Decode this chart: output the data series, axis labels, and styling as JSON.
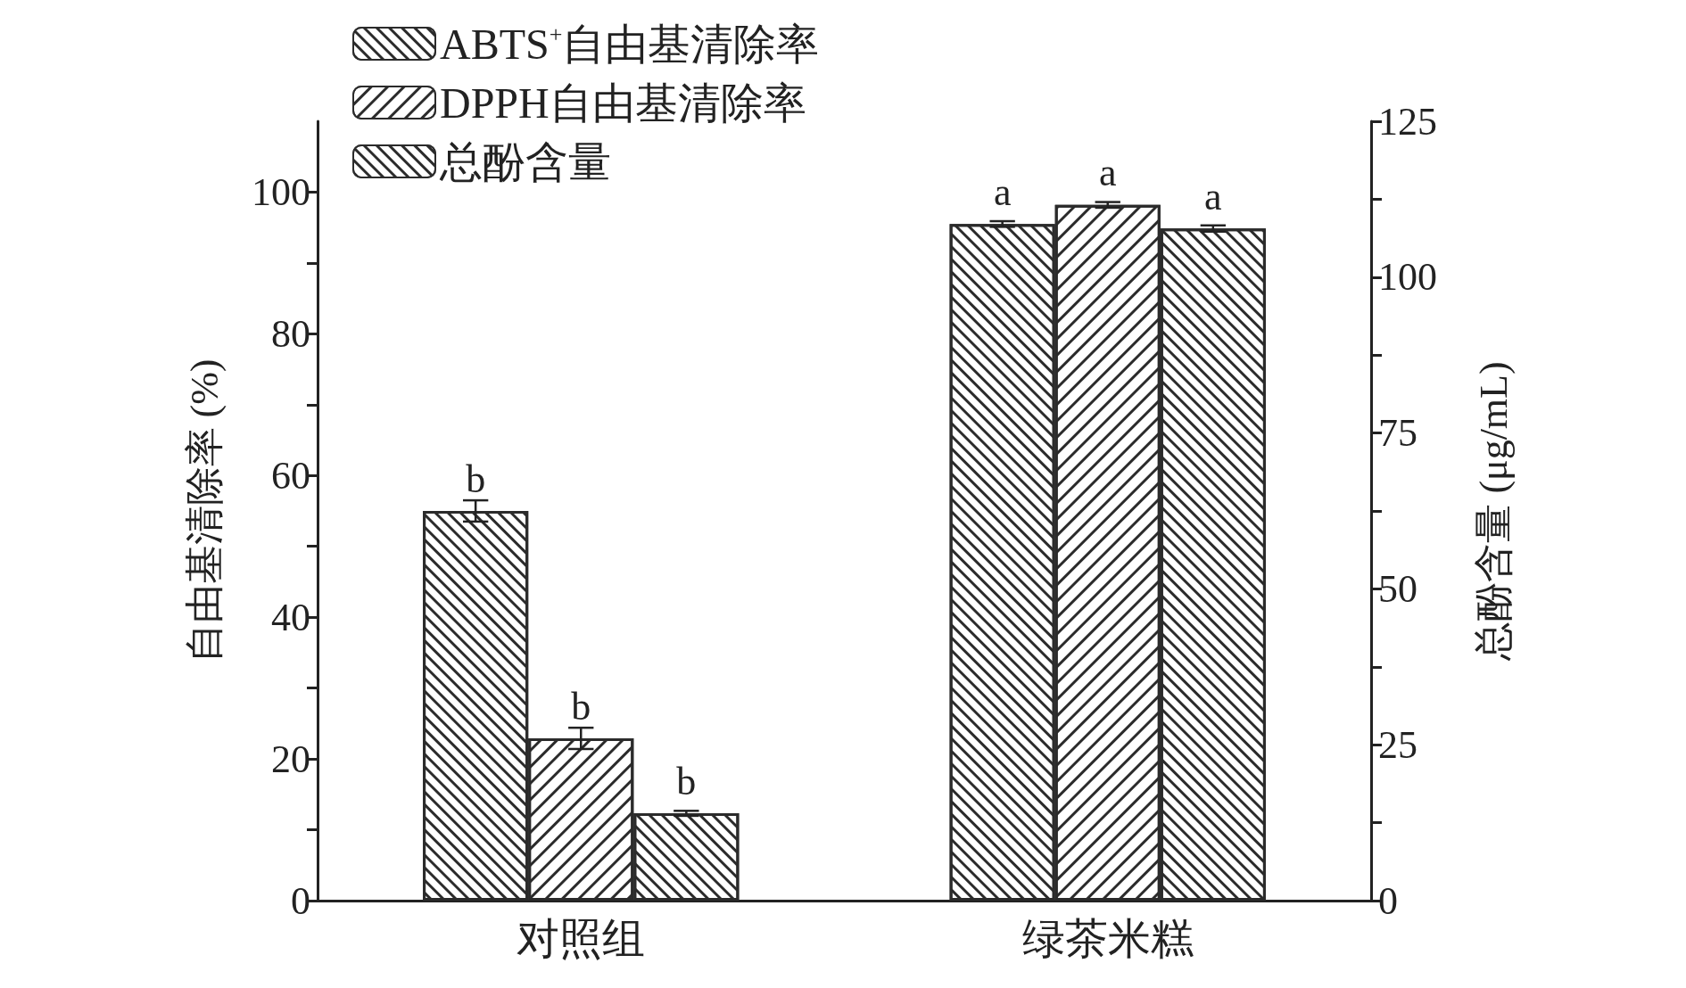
{
  "chart_data": {
    "type": "bar",
    "categories": [
      "对照组",
      "绿茶米糕"
    ],
    "ylabel": "自由基清除率 (%)",
    "y2label": "总酚含量 (μg/mL)",
    "ylim": [
      0,
      110
    ],
    "yticks": [
      0,
      20,
      40,
      60,
      80,
      100
    ],
    "y2lim": [
      0,
      125
    ],
    "y2ticks": [
      0,
      25,
      50,
      75,
      100,
      125
    ],
    "legend": "top left",
    "grid": false,
    "series": [
      {
        "name": "ABTS$^{+}$自由基清除率",
        "color": "#2b2b2b",
        "values": [
          55.0,
          95.5
        ],
        "errors": [
          1.5,
          0.4
        ],
        "value_labels": [
          "b",
          "a"
        ]
      },
      {
        "name": "DPPH自由基清除率",
        "color": "#2b2b2b",
        "values": [
          22.9,
          98.2
        ],
        "errors": [
          1.5,
          0.4
        ],
        "value_labels": [
          "b",
          "a"
        ]
      },
      {
        "name": "总酚含量",
        "color": "#2b2b2b",
        "values": [
          14.0,
          107.8
        ],
        "errors": [
          0.4,
          0.5
        ],
        "value_labels": [
          "b",
          "a"
        ],
        "axis": "y2"
      }
    ]
  }
}
